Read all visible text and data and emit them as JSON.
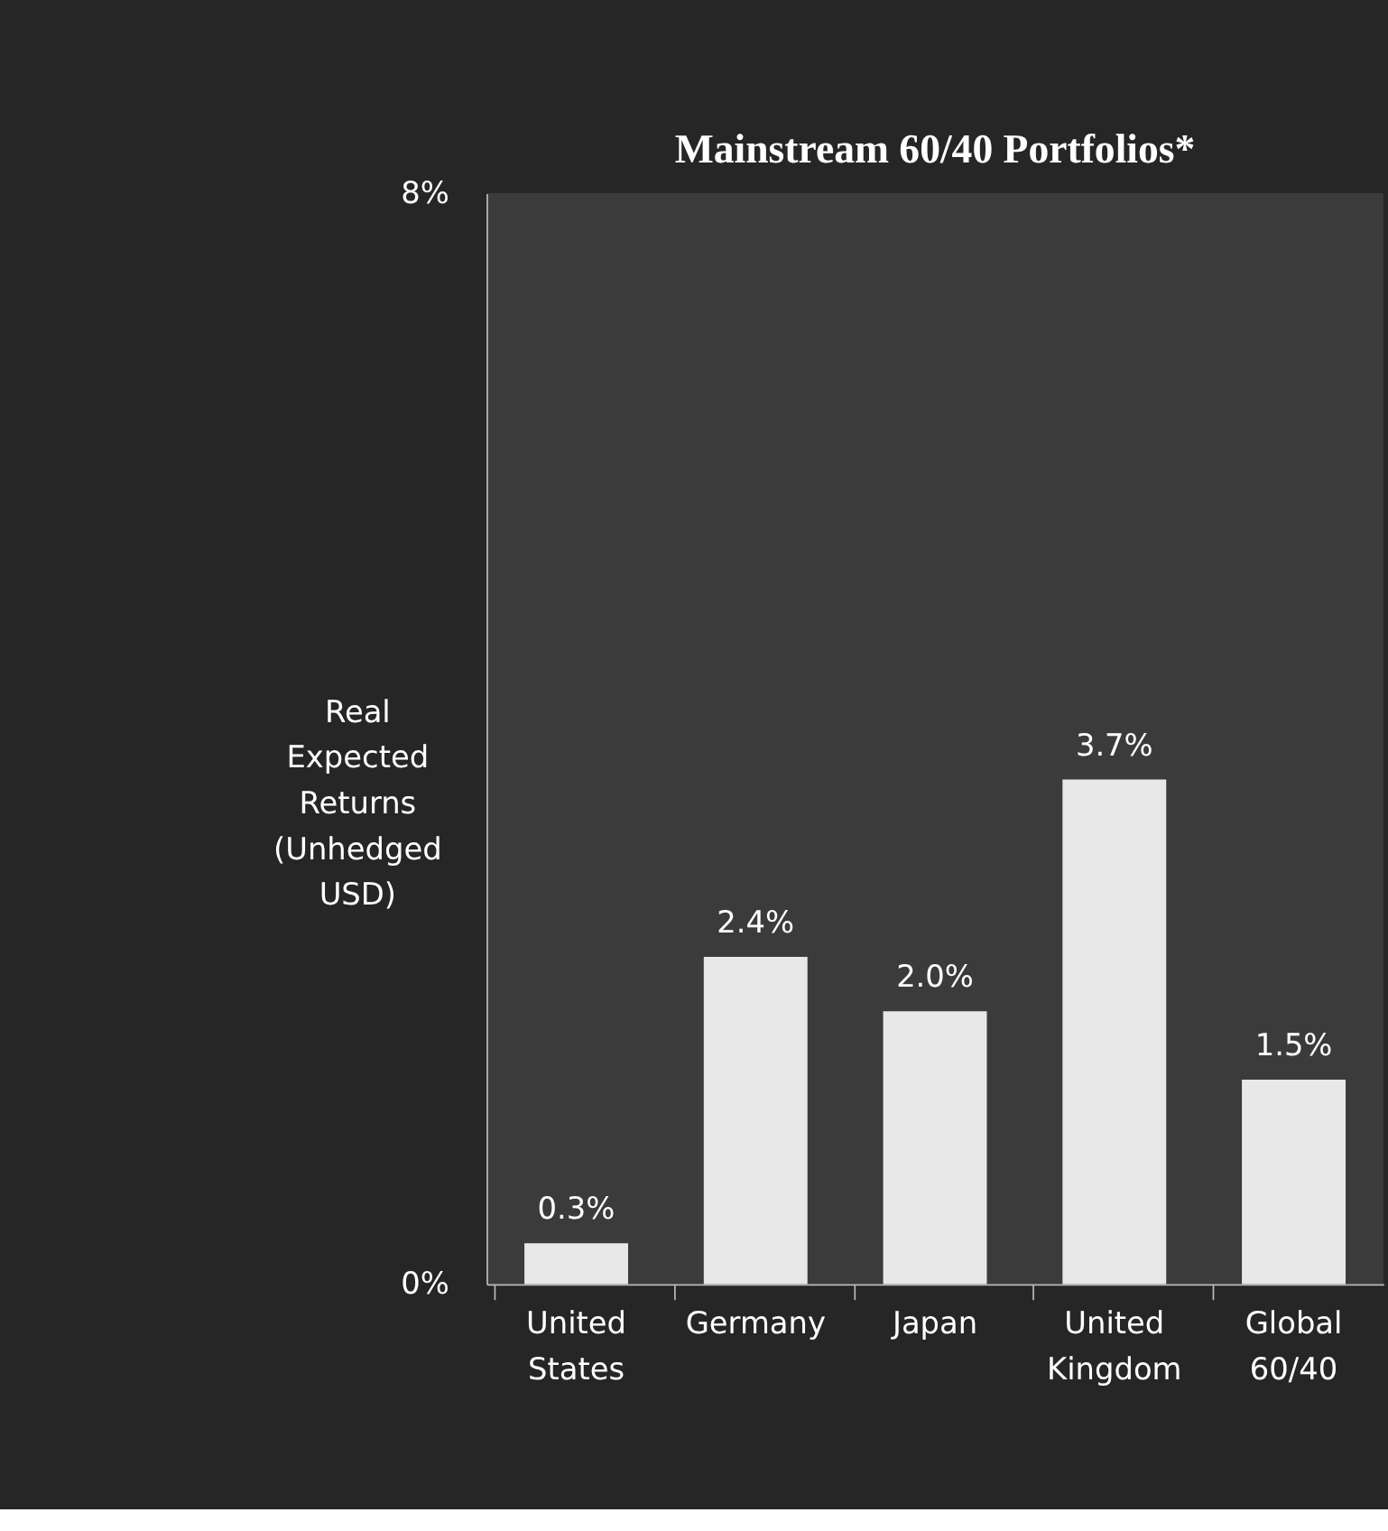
{
  "chart_data": {
    "type": "bar",
    "title": "Mainstream 60/40 Portfolios*",
    "ylabel": "Real Expected Returns (Unhedged USD)",
    "categories": [
      "United States",
      "Germany",
      "Japan",
      "United Kingdom",
      "Global 60/40"
    ],
    "values": [
      0.3,
      2.4,
      2.0,
      3.7,
      1.5
    ],
    "value_labels": [
      "0.3%",
      "2.4%",
      "2.0%",
      "3.7%",
      "1.5%"
    ],
    "color": "#e8e8e8",
    "ylim": [
      0,
      8
    ],
    "yticks": [
      {
        "value": 0,
        "label": "0%"
      },
      {
        "value": 8,
        "label": "8%"
      }
    ],
    "grid": false
  }
}
